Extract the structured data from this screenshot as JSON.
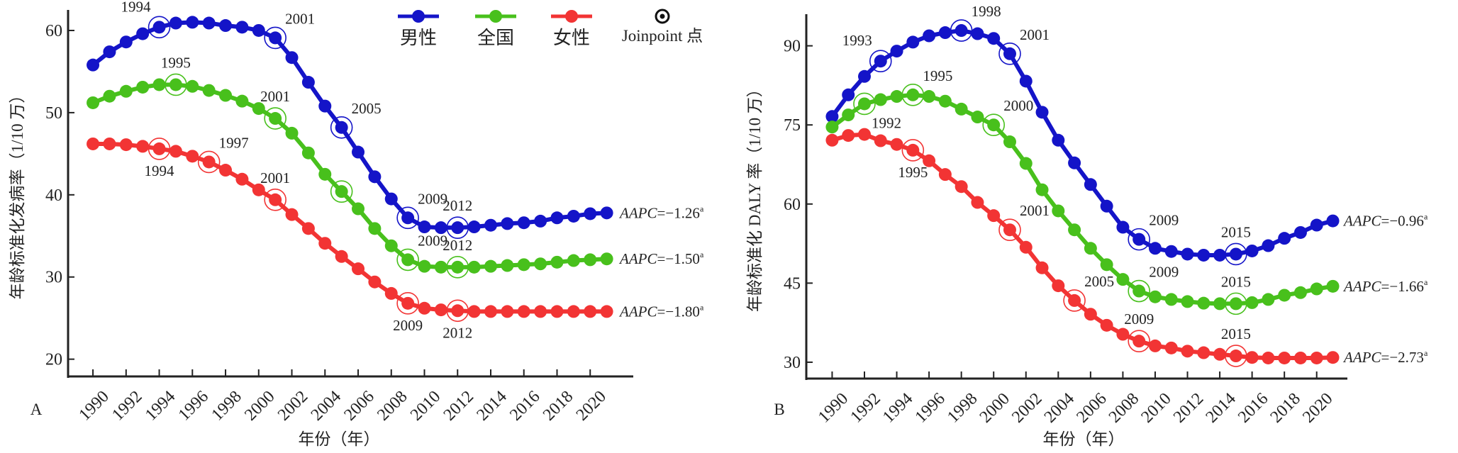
{
  "colors": {
    "male": "#1414c8",
    "national": "#48c01c",
    "female": "#f23434",
    "axis": "#222222"
  },
  "legend": {
    "items": [
      {
        "key": "male",
        "label": "男性"
      },
      {
        "key": "national",
        "label": "全国"
      },
      {
        "key": "female",
        "label": "女性"
      }
    ],
    "joinpoint_label": "Joinpoint 点"
  },
  "chart_data": [
    {
      "type": "line",
      "panel_label": "A",
      "xlabel": "年份（年）",
      "ylabel": "年龄标准化发病率（1/10 万）",
      "xlim": [
        1988.5,
        2022.6
      ],
      "ylim": [
        17.9,
        62.5
      ],
      "x_ticks": [
        "1990",
        "1992",
        "1994",
        "1996",
        "1998",
        "2000",
        "2002",
        "2004",
        "2006",
        "2008",
        "2010",
        "2012",
        "2014",
        "2016",
        "2018",
        "2020"
      ],
      "y_ticks": [
        "20",
        "30",
        "40",
        "50",
        "60"
      ],
      "x_start": 1990,
      "series": [
        {
          "key": "male",
          "name": "男性",
          "aapc_prefix": "AAPC",
          "aapc_value": "=−1.26",
          "aapc_note": "a",
          "values": [
            55.8,
            57.4,
            58.6,
            59.6,
            60.4,
            60.9,
            61.0,
            60.9,
            60.6,
            60.4,
            60.0,
            59.1,
            56.7,
            53.7,
            50.8,
            48.2,
            45.2,
            42.2,
            39.5,
            37.2,
            36.1,
            36.0,
            36.0,
            36.1,
            36.3,
            36.5,
            36.6,
            36.8,
            37.2,
            37.4,
            37.7,
            37.8
          ],
          "joinpoints": [
            {
              "year": 1994,
              "label": "1994",
              "pos": "above-left"
            },
            {
              "year": 2001,
              "label": "2001",
              "pos": "above-right"
            },
            {
              "year": 2005,
              "label": "2005",
              "pos": "above-right"
            },
            {
              "year": 2009,
              "label": "2009",
              "pos": "above-right"
            },
            {
              "year": 2012,
              "label": "2012",
              "pos": "above"
            }
          ]
        },
        {
          "key": "national",
          "name": "全国",
          "aapc_prefix": "AAPC",
          "aapc_value": "=−1.50",
          "aapc_note": "a",
          "values": [
            51.2,
            52.0,
            52.6,
            53.1,
            53.4,
            53.4,
            53.2,
            52.7,
            52.1,
            51.4,
            50.5,
            49.3,
            47.5,
            45.1,
            42.5,
            40.4,
            38.3,
            35.9,
            33.8,
            32.1,
            31.3,
            31.2,
            31.2,
            31.2,
            31.3,
            31.4,
            31.5,
            31.6,
            31.8,
            32.0,
            32.1,
            32.2
          ],
          "joinpoints": [
            {
              "year": 1995,
              "label": "1995",
              "pos": "above"
            },
            {
              "year": 2001,
              "label": "2001",
              "pos": "above"
            },
            {
              "year": 2005,
              "label": "",
              "pos": "none"
            },
            {
              "year": 2009,
              "label": "2009",
              "pos": "above-right"
            },
            {
              "year": 2012,
              "label": "2012",
              "pos": "above"
            }
          ]
        },
        {
          "key": "female",
          "name": "女性",
          "aapc_prefix": "AAPC",
          "aapc_value": "=−1.80",
          "aapc_note": "a",
          "values": [
            46.2,
            46.2,
            46.1,
            45.9,
            45.6,
            45.3,
            44.7,
            44.0,
            43.0,
            41.9,
            40.6,
            39.4,
            37.6,
            35.9,
            34.1,
            32.5,
            31.0,
            29.4,
            28.0,
            26.8,
            26.2,
            26.0,
            25.9,
            25.8,
            25.8,
            25.8,
            25.8,
            25.8,
            25.8,
            25.8,
            25.8,
            25.8
          ],
          "joinpoints": [
            {
              "year": 1994,
              "label": "1994",
              "pos": "below"
            },
            {
              "year": 1997,
              "label": "1997",
              "pos": "above-right"
            },
            {
              "year": 2001,
              "label": "2001",
              "pos": "above"
            },
            {
              "year": 2009,
              "label": "2009",
              "pos": "below"
            },
            {
              "year": 2012,
              "label": "2012",
              "pos": "below"
            }
          ]
        }
      ]
    },
    {
      "type": "line",
      "panel_label": "B",
      "xlabel": "年份（年）",
      "ylabel": "年龄标准化 DALY 率（1/10 万）",
      "xlim": [
        1988.4,
        2021.9
      ],
      "ylim": [
        26.9,
        96
      ],
      "x_ticks": [
        "1990",
        "1992",
        "1994",
        "1996",
        "1998",
        "2000",
        "2002",
        "2004",
        "2006",
        "2008",
        "2010",
        "2012",
        "2014",
        "2016",
        "2018",
        "2020"
      ],
      "y_ticks": [
        "30",
        "45",
        "60",
        "75",
        "90"
      ],
      "x_start": 1990,
      "series": [
        {
          "key": "male",
          "name": "男性",
          "aapc_prefix": "AAPC",
          "aapc_value": "=−0.96",
          "aapc_note": "a",
          "values": [
            76.6,
            80.7,
            84.2,
            87.1,
            89.0,
            90.7,
            91.9,
            92.5,
            92.9,
            92.3,
            91.4,
            88.5,
            83.3,
            77.4,
            72.1,
            67.8,
            63.7,
            59.6,
            55.6,
            53.3,
            51.6,
            51.0,
            50.5,
            50.3,
            50.3,
            50.5,
            51.1,
            52.1,
            53.5,
            54.6,
            56.0,
            56.8
          ],
          "joinpoints": [
            {
              "year": 1993,
              "label": "1993",
              "pos": "above-left"
            },
            {
              "year": 1998,
              "label": "1998",
              "pos": "above-right"
            },
            {
              "year": 2001,
              "label": "2001",
              "pos": "above-right"
            },
            {
              "year": 2009,
              "label": "2009",
              "pos": "above-right"
            },
            {
              "year": 2015,
              "label": "2015",
              "pos": "above"
            }
          ]
        },
        {
          "key": "national",
          "name": "全国",
          "aapc_prefix": "AAPC",
          "aapc_value": "=−1.66",
          "aapc_note": "a",
          "values": [
            74.6,
            76.9,
            79.0,
            79.8,
            80.4,
            80.7,
            80.4,
            79.5,
            78.0,
            76.5,
            75.0,
            71.8,
            67.7,
            62.7,
            58.7,
            55.1,
            51.6,
            48.5,
            45.7,
            43.5,
            42.4,
            41.9,
            41.5,
            41.2,
            41.1,
            41.1,
            41.3,
            41.9,
            42.7,
            43.2,
            43.9,
            44.4
          ],
          "joinpoints": [
            {
              "year": 1992,
              "label": "1992",
              "pos": "below-right"
            },
            {
              "year": 1995,
              "label": "1995",
              "pos": "above-right"
            },
            {
              "year": 2000,
              "label": "2000",
              "pos": "above-right"
            },
            {
              "year": 2009,
              "label": "2009",
              "pos": "above-right"
            },
            {
              "year": 2015,
              "label": "2015",
              "pos": "above"
            }
          ]
        },
        {
          "key": "female",
          "name": "女性",
          "aapc_prefix": "AAPC",
          "aapc_value": "=−2.73",
          "aapc_note": "a",
          "values": [
            72.1,
            73.0,
            73.2,
            72.0,
            71.3,
            70.2,
            68.2,
            65.6,
            63.3,
            60.3,
            57.8,
            55.1,
            51.8,
            47.9,
            44.5,
            41.7,
            39.1,
            37.0,
            35.3,
            34.0,
            33.1,
            32.7,
            32.1,
            31.8,
            31.5,
            31.2,
            30.9,
            30.8,
            30.8,
            30.8,
            30.8,
            30.9
          ],
          "joinpoints": [
            {
              "year": 1995,
              "label": "1995",
              "pos": "below"
            },
            {
              "year": 2001,
              "label": "2001",
              "pos": "above-right"
            },
            {
              "year": 2005,
              "label": "2005",
              "pos": "above-right"
            },
            {
              "year": 2009,
              "label": "2009",
              "pos": "above"
            },
            {
              "year": 2015,
              "label": "2015",
              "pos": "above"
            }
          ]
        }
      ]
    }
  ]
}
